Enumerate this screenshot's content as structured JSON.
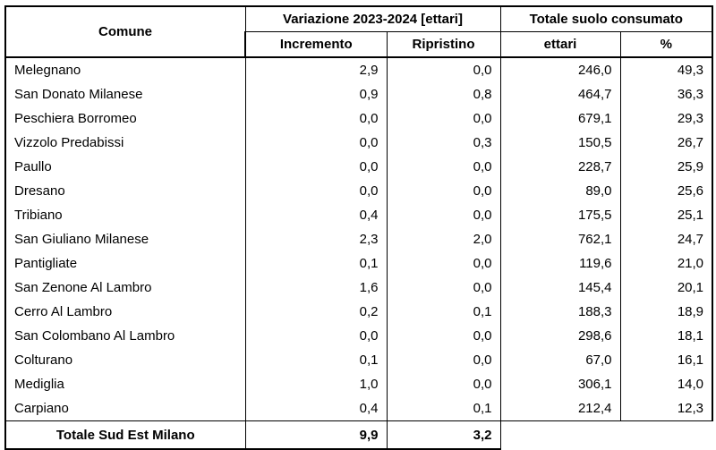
{
  "chart_data": {
    "type": "table",
    "header": {
      "comune": "Comune",
      "group_variazione": "Variazione 2023-2024 [ettari]",
      "group_totale": "Totale suolo consumato",
      "sub_labels": [
        "Incremento",
        "Ripristino",
        "ettari",
        "%"
      ]
    },
    "rows": [
      [
        "Melegnano",
        "2,9",
        "0,0",
        "246,0",
        "49,3"
      ],
      [
        "San Donato Milanese",
        "0,9",
        "0,8",
        "464,7",
        "36,3"
      ],
      [
        "Peschiera Borromeo",
        "0,0",
        "0,0",
        "679,1",
        "29,3"
      ],
      [
        "Vizzolo Predabissi",
        "0,0",
        "0,3",
        "150,5",
        "26,7"
      ],
      [
        "Paullo",
        "0,0",
        "0,0",
        "228,7",
        "25,9"
      ],
      [
        "Dresano",
        "0,0",
        "0,0",
        "89,0",
        "25,6"
      ],
      [
        "Tribiano",
        "0,4",
        "0,0",
        "175,5",
        "25,1"
      ],
      [
        "San Giuliano Milanese",
        "2,3",
        "2,0",
        "762,1",
        "24,7"
      ],
      [
        "Pantigliate",
        "0,1",
        "0,0",
        "119,6",
        "21,0"
      ],
      [
        "San Zenone Al Lambro",
        "1,6",
        "0,0",
        "145,4",
        "20,1"
      ],
      [
        "Cerro Al Lambro",
        "0,2",
        "0,1",
        "188,3",
        "18,9"
      ],
      [
        "San Colombano Al Lambro",
        "0,0",
        "0,0",
        "298,6",
        "18,1"
      ],
      [
        "Colturano",
        "0,1",
        "0,0",
        "67,0",
        "16,1"
      ],
      [
        "Mediglia",
        "1,0",
        "0,0",
        "306,1",
        "14,0"
      ],
      [
        "Carpiano",
        "0,4",
        "0,1",
        "212,4",
        "12,3"
      ]
    ],
    "footer": {
      "label": "Totale Sud Est Milano",
      "incremento": "9,9",
      "ripristino": "3,2"
    }
  },
  "colors": {
    "border": "#000000",
    "text": "#000000",
    "background": "#ffffff"
  }
}
